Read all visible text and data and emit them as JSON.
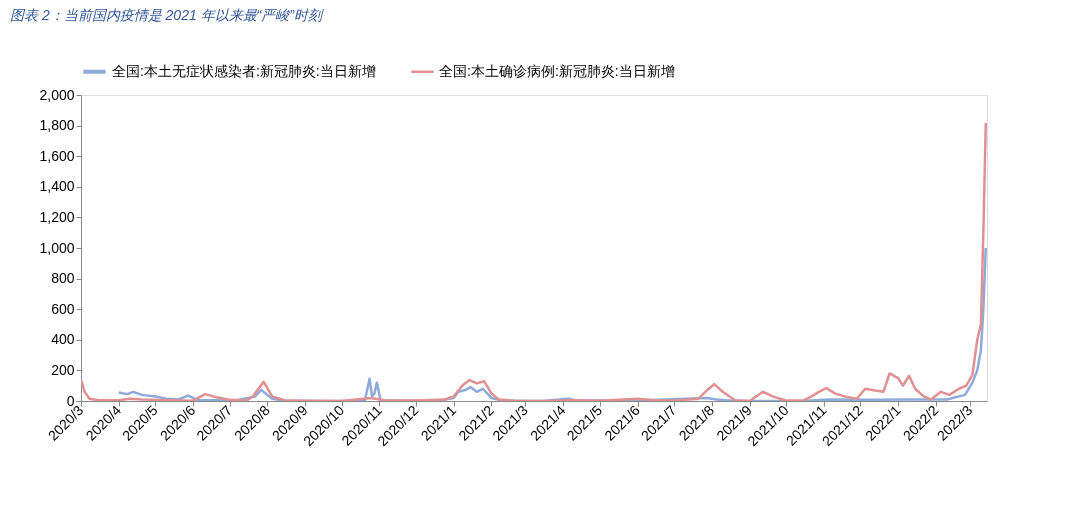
{
  "chart_data": {
    "type": "line",
    "title": "图表 2：当前国内疫情是 2021 年以来最“严峻”时刻",
    "series": [
      {
        "name": "全国:本土无症状感染者:新冠肺炎:当日新增",
        "color": "#8eaadb",
        "x": [
          "2020-04-01",
          "2020-04-08",
          "2020-04-13",
          "2020-04-20",
          "2020-05-01",
          "2020-05-10",
          "2020-05-20",
          "2020-05-28",
          "2020-06-05",
          "2020-06-20",
          "2020-07-05",
          "2020-07-22",
          "2020-07-27",
          "2020-08-05",
          "2020-08-15",
          "2020-09-15",
          "2020-10-20",
          "2020-10-24",
          "2020-10-26",
          "2020-10-28",
          "2020-10-30",
          "2020-11-02",
          "2020-11-20",
          "2020-12-20",
          "2021-01-01",
          "2021-01-05",
          "2021-01-10",
          "2021-01-15",
          "2021-01-20",
          "2021-01-25",
          "2021-02-01",
          "2021-02-10",
          "2021-03-15",
          "2021-04-05",
          "2021-04-12",
          "2021-06-01",
          "2021-07-28",
          "2021-08-05",
          "2021-08-20",
          "2021-10-15",
          "2021-11-05",
          "2021-12-10",
          "2022-01-10",
          "2022-02-10",
          "2022-02-25",
          "2022-03-03",
          "2022-03-07",
          "2022-03-10",
          "2022-03-12",
          "2022-03-14"
        ],
        "values": [
          55,
          45,
          60,
          40,
          30,
          15,
          10,
          35,
          5,
          5,
          2,
          30,
          72,
          15,
          2,
          0,
          0,
          145,
          30,
          50,
          120,
          5,
          2,
          3,
          20,
          60,
          70,
          90,
          60,
          80,
          20,
          2,
          0,
          15,
          3,
          3,
          20,
          10,
          0,
          0,
          10,
          8,
          10,
          10,
          40,
          120,
          200,
          333,
          600,
          1000
        ]
      },
      {
        "name": "全国:本土确诊病例:新冠肺炎:当日新增",
        "color": "#e09090",
        "x": [
          "2020-03-01",
          "2020-03-04",
          "2020-03-08",
          "2020-03-15",
          "2020-04-01",
          "2020-04-10",
          "2020-04-20",
          "2020-05-10",
          "2020-06-01",
          "2020-06-11",
          "2020-06-20",
          "2020-07-01",
          "2020-07-15",
          "2020-07-20",
          "2020-07-29",
          "2020-08-05",
          "2020-08-15",
          "2020-09-01",
          "2020-10-01",
          "2020-10-25",
          "2020-11-05",
          "2020-12-01",
          "2020-12-25",
          "2021-01-01",
          "2021-01-08",
          "2021-01-14",
          "2021-01-20",
          "2021-01-26",
          "2021-02-01",
          "2021-02-07",
          "2021-02-20",
          "2021-03-15",
          "2021-04-10",
          "2021-05-01",
          "2021-06-01",
          "2021-06-15",
          "2021-07-01",
          "2021-07-21",
          "2021-07-28",
          "2021-08-03",
          "2021-08-10",
          "2021-08-20",
          "2021-09-01",
          "2021-09-12",
          "2021-09-20",
          "2021-09-30",
          "2021-10-15",
          "2021-10-22",
          "2021-10-28",
          "2021-11-03",
          "2021-11-10",
          "2021-11-18",
          "2021-11-28",
          "2021-12-05",
          "2021-12-12",
          "2021-12-20",
          "2021-12-25",
          "2022-01-01",
          "2022-01-05",
          "2022-01-10",
          "2022-01-15",
          "2022-01-22",
          "2022-01-28",
          "2022-02-05",
          "2022-02-12",
          "2022-02-20",
          "2022-02-26",
          "2022-03-03",
          "2022-03-07",
          "2022-03-10",
          "2022-03-12",
          "2022-03-14"
        ],
        "values": [
          140,
          60,
          15,
          5,
          5,
          15,
          10,
          5,
          2,
          45,
          25,
          8,
          3,
          30,
          125,
          30,
          5,
          2,
          0,
          20,
          5,
          3,
          10,
          30,
          100,
          137,
          115,
          130,
          50,
          10,
          2,
          0,
          5,
          2,
          15,
          5,
          2,
          15,
          70,
          110,
          60,
          5,
          0,
          60,
          30,
          5,
          2,
          30,
          60,
          85,
          50,
          30,
          15,
          80,
          70,
          60,
          180,
          150,
          100,
          165,
          80,
          30,
          10,
          60,
          40,
          80,
          100,
          170,
          400,
          500,
          1100,
          1817
        ]
      }
    ],
    "xlim": [
      "2020-03-01",
      "2022-03-15"
    ],
    "xticks": [
      {
        "value": "2020-03",
        "label": "2020/3"
      },
      {
        "value": "2020-04",
        "label": "2020/4"
      },
      {
        "value": "2020-05",
        "label": "2020/5"
      },
      {
        "value": "2020-06",
        "label": "2020/6"
      },
      {
        "value": "2020-07",
        "label": "2020/7"
      },
      {
        "value": "2020-08",
        "label": "2020/8"
      },
      {
        "value": "2020-09",
        "label": "2020/9"
      },
      {
        "value": "2020-10",
        "label": "2020/10"
      },
      {
        "value": "2020-11",
        "label": "2020/11"
      },
      {
        "value": "2020-12",
        "label": "2020/12"
      },
      {
        "value": "2021-01",
        "label": "2021/1"
      },
      {
        "value": "2021-02",
        "label": "2021/2"
      },
      {
        "value": "2021-03",
        "label": "2021/3"
      },
      {
        "value": "2021-04",
        "label": "2021/4"
      },
      {
        "value": "2021-05",
        "label": "2021/5"
      },
      {
        "value": "2021-06",
        "label": "2021/6"
      },
      {
        "value": "2021-07",
        "label": "2021/7"
      },
      {
        "value": "2021-08",
        "label": "2021/8"
      },
      {
        "value": "2021-09",
        "label": "2021/9"
      },
      {
        "value": "2021-10",
        "label": "2021/10"
      },
      {
        "value": "2021-11",
        "label": "2021/11"
      },
      {
        "value": "2021-12",
        "label": "2021/12"
      },
      {
        "value": "2022-01",
        "label": "2022/1"
      },
      {
        "value": "2022-02",
        "label": "2022/2"
      },
      {
        "value": "2022-03",
        "label": "2022/3"
      }
    ],
    "ylim": [
      0,
      2000
    ],
    "yticks": [
      {
        "value": 0,
        "label": "0"
      },
      {
        "value": 200,
        "label": "200"
      },
      {
        "value": 400,
        "label": "400"
      },
      {
        "value": 600,
        "label": "600"
      },
      {
        "value": 800,
        "label": "800"
      },
      {
        "value": 1000,
        "label": "1,000"
      },
      {
        "value": 1200,
        "label": "1,200"
      },
      {
        "value": 1400,
        "label": "1,400"
      },
      {
        "value": 1600,
        "label": "1,600"
      },
      {
        "value": 1800,
        "label": "1,800"
      },
      {
        "value": 2000,
        "label": "2,000"
      }
    ],
    "grid": false,
    "legend": "top",
    "line_style": "solid",
    "marker": "none"
  }
}
